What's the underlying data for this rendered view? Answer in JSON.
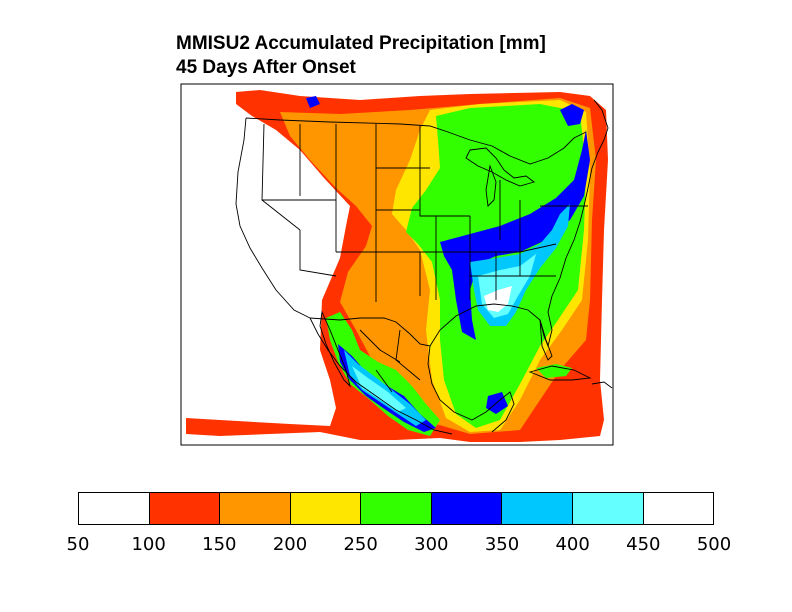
{
  "title": {
    "line1": "MMISU2 Accumulated Precipitation [mm]",
    "line2": "45 Days After Onset"
  },
  "colorbar": {
    "levels": [
      "50",
      "100",
      "150",
      "200",
      "250",
      "300",
      "350",
      "400",
      "450",
      "500"
    ],
    "colors": [
      "#ffffff",
      "#ff3200",
      "#ff9600",
      "#ffe600",
      "#32ff00",
      "#0000ff",
      "#00c8ff",
      "#64ffff",
      "#ffffff"
    ]
  },
  "map": {
    "region": "United States, Mexico and Gulf of Mexico",
    "variable": "Accumulated Precipitation",
    "units": "mm"
  }
}
